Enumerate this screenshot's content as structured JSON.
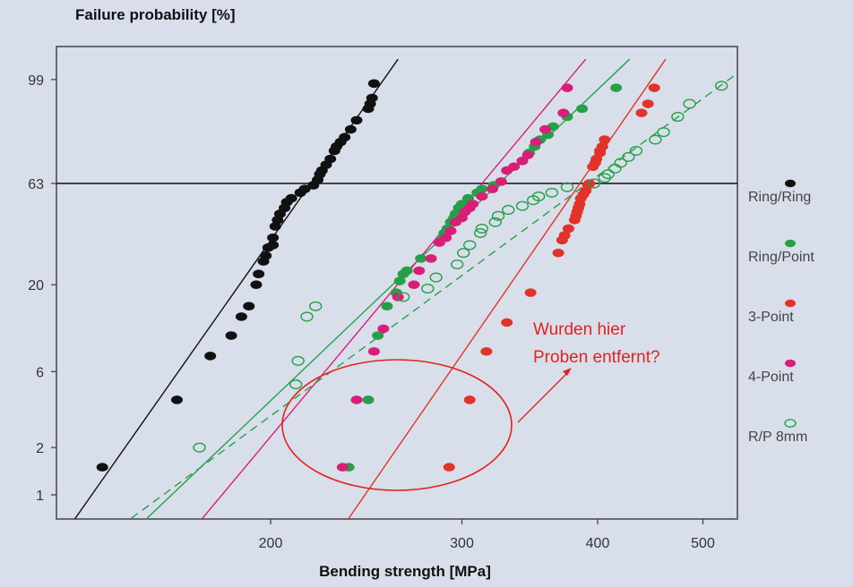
{
  "chart_data": {
    "type": "scatter",
    "title": "Failure probability [%]",
    "xlabel": "Bending strength [MPa]",
    "ylabel": "Failure probability [%]",
    "x_scale": "log",
    "y_scale": "weibull",
    "xlim": [
      130,
      560
    ],
    "x_ticks": [
      200,
      300,
      400,
      500
    ],
    "y_ticks": [
      1,
      2,
      6,
      20,
      63,
      99
    ],
    "grid": false,
    "legend_position": "right",
    "legend": [
      "Ring/Ring",
      "Ring/Point",
      "3-Point",
      "4-Point",
      "R/P 8mm"
    ],
    "reference_line": {
      "y": 63
    },
    "annotation": {
      "lines": [
        "Wurden hier",
        "Proben entfernt?"
      ],
      "color": "#e2221c"
    },
    "series": [
      {
        "name": "Ring/Ring",
        "color": "#111111",
        "marker": "filled",
        "points": [
          [
            140,
            1.5
          ],
          [
            164,
            4
          ],
          [
            176,
            7.5
          ],
          [
            184,
            10
          ],
          [
            188,
            13
          ],
          [
            191,
            15
          ],
          [
            194,
            20
          ],
          [
            195,
            23
          ],
          [
            197,
            27
          ],
          [
            198,
            29
          ],
          [
            199,
            32
          ],
          [
            201,
            33
          ],
          [
            201,
            36
          ],
          [
            202,
            41
          ],
          [
            203,
            44
          ],
          [
            204,
            47
          ],
          [
            206,
            50
          ],
          [
            207,
            53
          ],
          [
            209,
            55
          ],
          [
            213,
            58
          ],
          [
            215,
            60
          ],
          [
            219,
            62
          ],
          [
            221,
            65
          ],
          [
            222,
            68
          ],
          [
            223,
            70
          ],
          [
            225,
            73
          ],
          [
            227,
            76
          ],
          [
            229,
            80
          ],
          [
            230,
            82
          ],
          [
            232,
            84
          ],
          [
            234,
            86
          ],
          [
            237,
            89
          ],
          [
            240,
            92
          ],
          [
            246,
            95
          ],
          [
            247,
            96
          ],
          [
            248,
            97
          ],
          [
            249,
            98.7
          ]
        ],
        "fit": [
          [
            130,
            0.6
          ],
          [
            262,
            99.8
          ]
        ]
      },
      {
        "name": "Ring/Point",
        "color": "#26a048",
        "marker": "filled",
        "points": [
          [
            236,
            1.5
          ],
          [
            246,
            4
          ],
          [
            251,
            10
          ],
          [
            256,
            15
          ],
          [
            261,
            18
          ],
          [
            263,
            21
          ],
          [
            265,
            23
          ],
          [
            267,
            24
          ],
          [
            275,
            28
          ],
          [
            288,
            36
          ],
          [
            289,
            38
          ],
          [
            291,
            40
          ],
          [
            293,
            43
          ],
          [
            295,
            45
          ],
          [
            296,
            47
          ],
          [
            298,
            50
          ],
          [
            300,
            52
          ],
          [
            304,
            55
          ],
          [
            310,
            58
          ],
          [
            313,
            60
          ],
          [
            321,
            62
          ],
          [
            346,
            79
          ],
          [
            350,
            82
          ],
          [
            354,
            85
          ],
          [
            360,
            87
          ],
          [
            364,
            90
          ],
          [
            375,
            93
          ],
          [
            387,
            95
          ],
          [
            416,
            98.3
          ]
        ],
        "fit": [
          [
            146,
            0.5
          ],
          [
            428,
            99.8
          ]
        ]
      },
      {
        "name": "3-Point",
        "color": "#e2332a",
        "marker": "filled",
        "points": [
          [
            292,
            1.5
          ],
          [
            305,
            4
          ],
          [
            316,
            8
          ],
          [
            330,
            12
          ],
          [
            347,
            18
          ],
          [
            368,
            30
          ],
          [
            371,
            35
          ],
          [
            373,
            37
          ],
          [
            376,
            40
          ],
          [
            381,
            44
          ],
          [
            382,
            46
          ],
          [
            383,
            48
          ],
          [
            384,
            50
          ],
          [
            385,
            52
          ],
          [
            386,
            55
          ],
          [
            388,
            57
          ],
          [
            390,
            59
          ],
          [
            392,
            62
          ],
          [
            393,
            63
          ],
          [
            396,
            72
          ],
          [
            398,
            74
          ],
          [
            399,
            76
          ],
          [
            402,
            79
          ],
          [
            402,
            80
          ],
          [
            404,
            82
          ],
          [
            406,
            85
          ],
          [
            439,
            94
          ],
          [
            445,
            96
          ],
          [
            451,
            98.3
          ]
        ],
        "fit": [
          [
            228,
            0.5
          ],
          [
            462,
            99.8
          ]
        ]
      },
      {
        "name": "4-Point",
        "color": "#d81e79",
        "marker": "filled",
        "points": [
          [
            233,
            1.5
          ],
          [
            240,
            4
          ],
          [
            249,
            8
          ],
          [
            254,
            11
          ],
          [
            262,
            17
          ],
          [
            271,
            20
          ],
          [
            274,
            24
          ],
          [
            281,
            28
          ],
          [
            286,
            34
          ],
          [
            290,
            36
          ],
          [
            293,
            39
          ],
          [
            296,
            43
          ],
          [
            300,
            45
          ],
          [
            302,
            48
          ],
          [
            305,
            50
          ],
          [
            307,
            52
          ],
          [
            313,
            56
          ],
          [
            320,
            60
          ],
          [
            326,
            64
          ],
          [
            330,
            70
          ],
          [
            335,
            72
          ],
          [
            341,
            75
          ],
          [
            345,
            78
          ],
          [
            351,
            84
          ],
          [
            358,
            89
          ],
          [
            372,
            94
          ],
          [
            375,
            98.3
          ]
        ],
        "fit": [
          [
            166,
            0.5
          ],
          [
            390,
            99.8
          ]
        ]
      },
      {
        "name": "R/P 8mm",
        "color": "#26a048",
        "marker": "open",
        "points": [
          [
            172,
            2
          ],
          [
            211,
            5
          ],
          [
            212,
            7
          ],
          [
            216,
            13
          ],
          [
            220,
            15
          ],
          [
            265,
            17
          ],
          [
            279,
            19
          ],
          [
            284,
            22
          ],
          [
            297,
            26
          ],
          [
            301,
            30
          ],
          [
            305,
            33
          ],
          [
            312,
            38
          ],
          [
            313,
            40
          ],
          [
            322,
            43
          ],
          [
            324,
            46
          ],
          [
            331,
            49
          ],
          [
            341,
            51
          ],
          [
            349,
            54
          ],
          [
            353,
            56
          ],
          [
            363,
            58
          ],
          [
            375,
            61
          ],
          [
            397,
            63
          ],
          [
            406,
            66
          ],
          [
            409,
            68
          ],
          [
            415,
            71
          ],
          [
            420,
            74
          ],
          [
            427,
            77
          ],
          [
            434,
            80
          ],
          [
            452,
            85
          ],
          [
            460,
            88
          ],
          [
            474,
            93
          ],
          [
            486,
            96
          ],
          [
            520,
            98.5
          ]
        ],
        "fit": [
          [
            139,
            0.5
          ],
          [
            543,
            99.5
          ]
        ]
      }
    ]
  }
}
